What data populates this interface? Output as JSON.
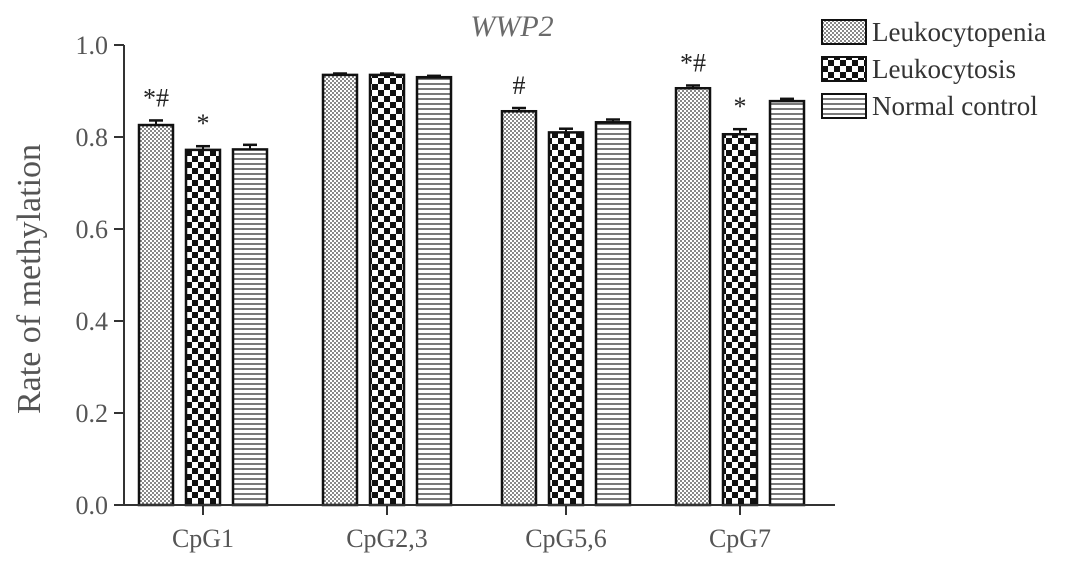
{
  "chart_data": {
    "type": "bar",
    "title": "WWP2",
    "xlabel": "",
    "ylabel": "Rate of methylation",
    "ylim": [
      0.0,
      1.0
    ],
    "yticks": [
      "0.0",
      "0.2",
      "0.4",
      "0.6",
      "0.8",
      "1.0"
    ],
    "grid": false,
    "legend_position": "top-right",
    "categories": [
      "CpG1",
      "CpG2,3",
      "CpG5,6",
      "CpG7"
    ],
    "series": [
      {
        "name": "Leukocytopenia",
        "pattern": "dots",
        "values": [
          0.826,
          0.935,
          0.856,
          0.906
        ],
        "errors": [
          0.01,
          0.003,
          0.007,
          0.006
        ],
        "annotations": [
          "*#",
          "",
          "#",
          "*#"
        ]
      },
      {
        "name": "Leukocytosis",
        "pattern": "checker",
        "values": [
          0.772,
          0.935,
          0.81,
          0.806
        ],
        "errors": [
          0.008,
          0.003,
          0.008,
          0.011
        ],
        "annotations": [
          "*",
          "",
          "",
          "*"
        ]
      },
      {
        "name": "Normal control",
        "pattern": "horizontal-lines",
        "values": [
          0.773,
          0.93,
          0.832,
          0.878
        ],
        "errors": [
          0.01,
          0.003,
          0.006,
          0.005
        ],
        "annotations": [
          "",
          "",
          "",
          ""
        ]
      }
    ],
    "colors": {
      "bar_fill": "#ffffff",
      "bar_stroke": "#111111",
      "pattern_ink": "#333333",
      "axis": "#333333",
      "text": "#555555"
    }
  }
}
